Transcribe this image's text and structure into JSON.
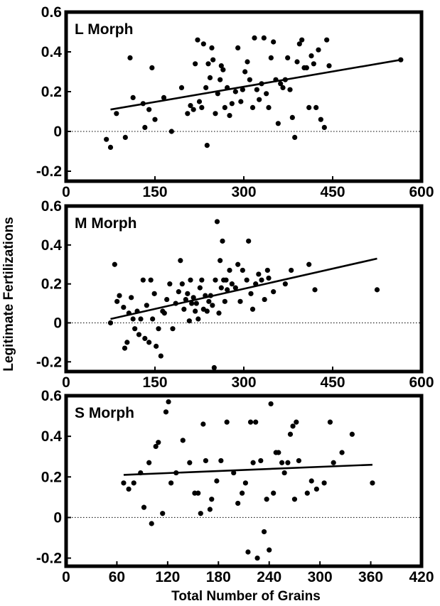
{
  "figure": {
    "ylabel": "Legitimate Fertilizations",
    "xlabel": "Total Number of Grains",
    "colors": {
      "ink": "#000000",
      "background": "#ffffff"
    }
  },
  "chart_data": [
    {
      "type": "scatter",
      "title": "L Morph",
      "xlabel": "",
      "ylabel": "Legitimate Fertilizations",
      "xlim": [
        0,
        600
      ],
      "ylim": [
        -0.25,
        0.6
      ],
      "xticks": [
        0,
        150,
        300,
        450,
        600
      ],
      "xtick_labels": [
        "0",
        "150",
        "300",
        "450",
        "600"
      ],
      "yticks": [
        0.6,
        0.4,
        0.2,
        0,
        -0.2
      ],
      "ytick_labels": [
        "0.6",
        "0.4",
        "0.2",
        "0",
        "-0.2"
      ],
      "reference_line_y": 0,
      "grid": false,
      "fit_line": {
        "x": [
          75,
          565
        ],
        "y": [
          0.11,
          0.36
        ]
      },
      "points": [
        [
          68,
          -0.04
        ],
        [
          75,
          -0.08
        ],
        [
          85,
          0.09
        ],
        [
          100,
          -0.03
        ],
        [
          108,
          0.37
        ],
        [
          113,
          0.17
        ],
        [
          130,
          0.14
        ],
        [
          133,
          0.02
        ],
        [
          140,
          0.11
        ],
        [
          145,
          0.32
        ],
        [
          150,
          0.06
        ],
        [
          165,
          0.17
        ],
        [
          178,
          0.0
        ],
        [
          195,
          0.22
        ],
        [
          205,
          0.09
        ],
        [
          210,
          0.13
        ],
        [
          215,
          0.11
        ],
        [
          218,
          0.34
        ],
        [
          222,
          0.46
        ],
        [
          225,
          0.15
        ],
        [
          229,
          0.12
        ],
        [
          232,
          0.44
        ],
        [
          236,
          0.22
        ],
        [
          238,
          -0.07
        ],
        [
          240,
          0.34
        ],
        [
          243,
          0.27
        ],
        [
          246,
          0.42
        ],
        [
          248,
          0.36
        ],
        [
          252,
          0.09
        ],
        [
          256,
          0.19
        ],
        [
          260,
          0.26
        ],
        [
          262,
          0.33
        ],
        [
          265,
          0.31
        ],
        [
          268,
          0.12
        ],
        [
          272,
          0.22
        ],
        [
          276,
          0.08
        ],
        [
          280,
          0.14
        ],
        [
          286,
          0.2
        ],
        [
          290,
          0.42
        ],
        [
          295,
          0.15
        ],
        [
          298,
          0.21
        ],
        [
          302,
          0.3
        ],
        [
          306,
          0.35
        ],
        [
          310,
          0.26
        ],
        [
          315,
          0.12
        ],
        [
          318,
          0.47
        ],
        [
          322,
          0.21
        ],
        [
          326,
          0.16
        ],
        [
          330,
          0.24
        ],
        [
          334,
          0.47
        ],
        [
          338,
          0.19
        ],
        [
          342,
          0.12
        ],
        [
          346,
          0.37
        ],
        [
          350,
          0.45
        ],
        [
          354,
          0.26
        ],
        [
          358,
          0.04
        ],
        [
          362,
          0.24
        ],
        [
          366,
          0.22
        ],
        [
          370,
          0.26
        ],
        [
          374,
          0.37
        ],
        [
          378,
          0.21
        ],
        [
          382,
          0.07
        ],
        [
          386,
          -0.03
        ],
        [
          390,
          0.35
        ],
        [
          394,
          0.44
        ],
        [
          398,
          0.46
        ],
        [
          402,
          0.32
        ],
        [
          406,
          0.32
        ],
        [
          410,
          0.12
        ],
        [
          414,
          0.38
        ],
        [
          418,
          0.34
        ],
        [
          422,
          0.12
        ],
        [
          426,
          0.41
        ],
        [
          430,
          0.06
        ],
        [
          436,
          0.02
        ],
        [
          440,
          0.46
        ],
        [
          444,
          0.33
        ],
        [
          565,
          0.36
        ]
      ]
    },
    {
      "type": "scatter",
      "title": "M Morph",
      "xlabel": "",
      "ylabel": "Legitimate Fertilizations",
      "xlim": [
        0,
        600
      ],
      "ylim": [
        -0.25,
        0.6
      ],
      "xticks": [
        0,
        150,
        300,
        450,
        600
      ],
      "xtick_labels": [
        "0",
        "150",
        "300",
        "450",
        "600"
      ],
      "yticks": [
        0.6,
        0.4,
        0.2,
        0,
        -0.2
      ],
      "ytick_labels": [
        "0.6",
        "0.4",
        "0.2",
        "0",
        "-0.2"
      ],
      "reference_line_y": 0,
      "grid": false,
      "fit_line": {
        "x": [
          75,
          525
        ],
        "y": [
          0.02,
          0.33
        ]
      },
      "points": [
        [
          75,
          0.0
        ],
        [
          82,
          0.3
        ],
        [
          86,
          0.11
        ],
        [
          90,
          0.14
        ],
        [
          97,
          0.08
        ],
        [
          99,
          -0.13
        ],
        [
          103,
          -0.1
        ],
        [
          106,
          0.05
        ],
        [
          110,
          0.13
        ],
        [
          113,
          0.02
        ],
        [
          116,
          -0.03
        ],
        [
          120,
          0.06
        ],
        [
          123,
          -0.06
        ],
        [
          126,
          0.02
        ],
        [
          130,
          0.22
        ],
        [
          133,
          -0.08
        ],
        [
          136,
          0.09
        ],
        [
          140,
          -0.1
        ],
        [
          143,
          0.22
        ],
        [
          146,
          0.02
        ],
        [
          149,
          0.15
        ],
        [
          152,
          -0.12
        ],
        [
          156,
          -0.03
        ],
        [
          160,
          -0.17
        ],
        [
          163,
          0.06
        ],
        [
          166,
          0.05
        ],
        [
          170,
          0.12
        ],
        [
          175,
          0.2
        ],
        [
          180,
          -0.03
        ],
        [
          185,
          0.1
        ],
        [
          190,
          0.16
        ],
        [
          193,
          0.32
        ],
        [
          196,
          0.2
        ],
        [
          199,
          0.07
        ],
        [
          202,
          0.12
        ],
        [
          205,
          0.15
        ],
        [
          208,
          0.01
        ],
        [
          210,
          0.22
        ],
        [
          212,
          0.1
        ],
        [
          215,
          0.13
        ],
        [
          218,
          0.06
        ],
        [
          220,
          0.1
        ],
        [
          223,
          0.02
        ],
        [
          226,
          0.18
        ],
        [
          229,
          0.22
        ],
        [
          232,
          0.07
        ],
        [
          235,
          0.14
        ],
        [
          238,
          0.06
        ],
        [
          241,
          0.11
        ],
        [
          244,
          0.14
        ],
        [
          247,
          0.09
        ],
        [
          250,
          -0.23
        ],
        [
          252,
          0.22
        ],
        [
          255,
          0.52
        ],
        [
          258,
          0.05
        ],
        [
          260,
          0.32
        ],
        [
          262,
          0.18
        ],
        [
          264,
          0.42
        ],
        [
          266,
          0.22
        ],
        [
          268,
          0.11
        ],
        [
          270,
          0.22
        ],
        [
          272,
          0.17
        ],
        [
          276,
          0.27
        ],
        [
          280,
          0.2
        ],
        [
          286,
          0.18
        ],
        [
          290,
          0.3
        ],
        [
          294,
          0.11
        ],
        [
          298,
          0.27
        ],
        [
          305,
          0.22
        ],
        [
          308,
          0.42
        ],
        [
          312,
          0.15
        ],
        [
          315,
          0.07
        ],
        [
          320,
          0.2
        ],
        [
          325,
          0.25
        ],
        [
          330,
          0.22
        ],
        [
          335,
          0.12
        ],
        [
          340,
          0.27
        ],
        [
          342,
          0.23
        ],
        [
          350,
          0.16
        ],
        [
          370,
          0.2
        ],
        [
          380,
          0.27
        ],
        [
          410,
          0.3
        ],
        [
          420,
          0.17
        ],
        [
          525,
          0.17
        ]
      ]
    },
    {
      "type": "scatter",
      "title": "S Morph",
      "xlabel": "Total Number of Grains",
      "ylabel": "Legitimate Fertilizations",
      "xlim": [
        0,
        420
      ],
      "ylim": [
        -0.24,
        0.6
      ],
      "xticks": [
        0,
        60,
        120,
        180,
        240,
        300,
        360,
        420
      ],
      "xtick_labels": [
        "0",
        "60",
        "120",
        "180",
        "240",
        "300",
        "360",
        "420"
      ],
      "yticks": [
        0.6,
        0.4,
        0.2,
        0,
        -0.2
      ],
      "ytick_labels": [
        "0.6",
        "0.4",
        "0.2",
        "0",
        "-0.2"
      ],
      "reference_line_y": 0,
      "grid": false,
      "fit_line": {
        "x": [
          68,
          362
        ],
        "y": [
          0.21,
          0.26
        ]
      },
      "points": [
        [
          68,
          0.17
        ],
        [
          74,
          0.14
        ],
        [
          80,
          0.17
        ],
        [
          88,
          0.22
        ],
        [
          92,
          0.05
        ],
        [
          98,
          0.27
        ],
        [
          101,
          -0.03
        ],
        [
          106,
          0.35
        ],
        [
          109,
          0.37
        ],
        [
          114,
          0.02
        ],
        [
          118,
          0.52
        ],
        [
          121,
          0.57
        ],
        [
          124,
          0.17
        ],
        [
          130,
          0.22
        ],
        [
          138,
          0.38
        ],
        [
          146,
          0.27
        ],
        [
          152,
          0.12
        ],
        [
          156,
          0.12
        ],
        [
          159,
          0.02
        ],
        [
          162,
          0.46
        ],
        [
          165,
          0.28
        ],
        [
          170,
          0.04
        ],
        [
          172,
          0.09
        ],
        [
          178,
          0.18
        ],
        [
          183,
          0.28
        ],
        [
          190,
          0.47
        ],
        [
          198,
          0.22
        ],
        [
          203,
          0.07
        ],
        [
          208,
          0.12
        ],
        [
          212,
          0.17
        ],
        [
          215,
          -0.17
        ],
        [
          218,
          0.47
        ],
        [
          221,
          0.27
        ],
        [
          224,
          0.47
        ],
        [
          226,
          -0.2
        ],
        [
          230,
          0.28
        ],
        [
          234,
          -0.07
        ],
        [
          237,
          0.09
        ],
        [
          240,
          -0.16
        ],
        [
          242,
          0.56
        ],
        [
          245,
          0.12
        ],
        [
          248,
          0.32
        ],
        [
          251,
          0.32
        ],
        [
          255,
          0.27
        ],
        [
          258,
          0.22
        ],
        [
          262,
          0.27
        ],
        [
          265,
          0.41
        ],
        [
          268,
          0.45
        ],
        [
          270,
          0.09
        ],
        [
          272,
          0.47
        ],
        [
          275,
          0.28
        ],
        [
          285,
          0.12
        ],
        [
          290,
          0.18
        ],
        [
          296,
          0.14
        ],
        [
          305,
          0.17
        ],
        [
          312,
          0.47
        ],
        [
          316,
          0.27
        ],
        [
          326,
          0.32
        ],
        [
          338,
          0.41
        ],
        [
          362,
          0.17
        ]
      ]
    }
  ]
}
